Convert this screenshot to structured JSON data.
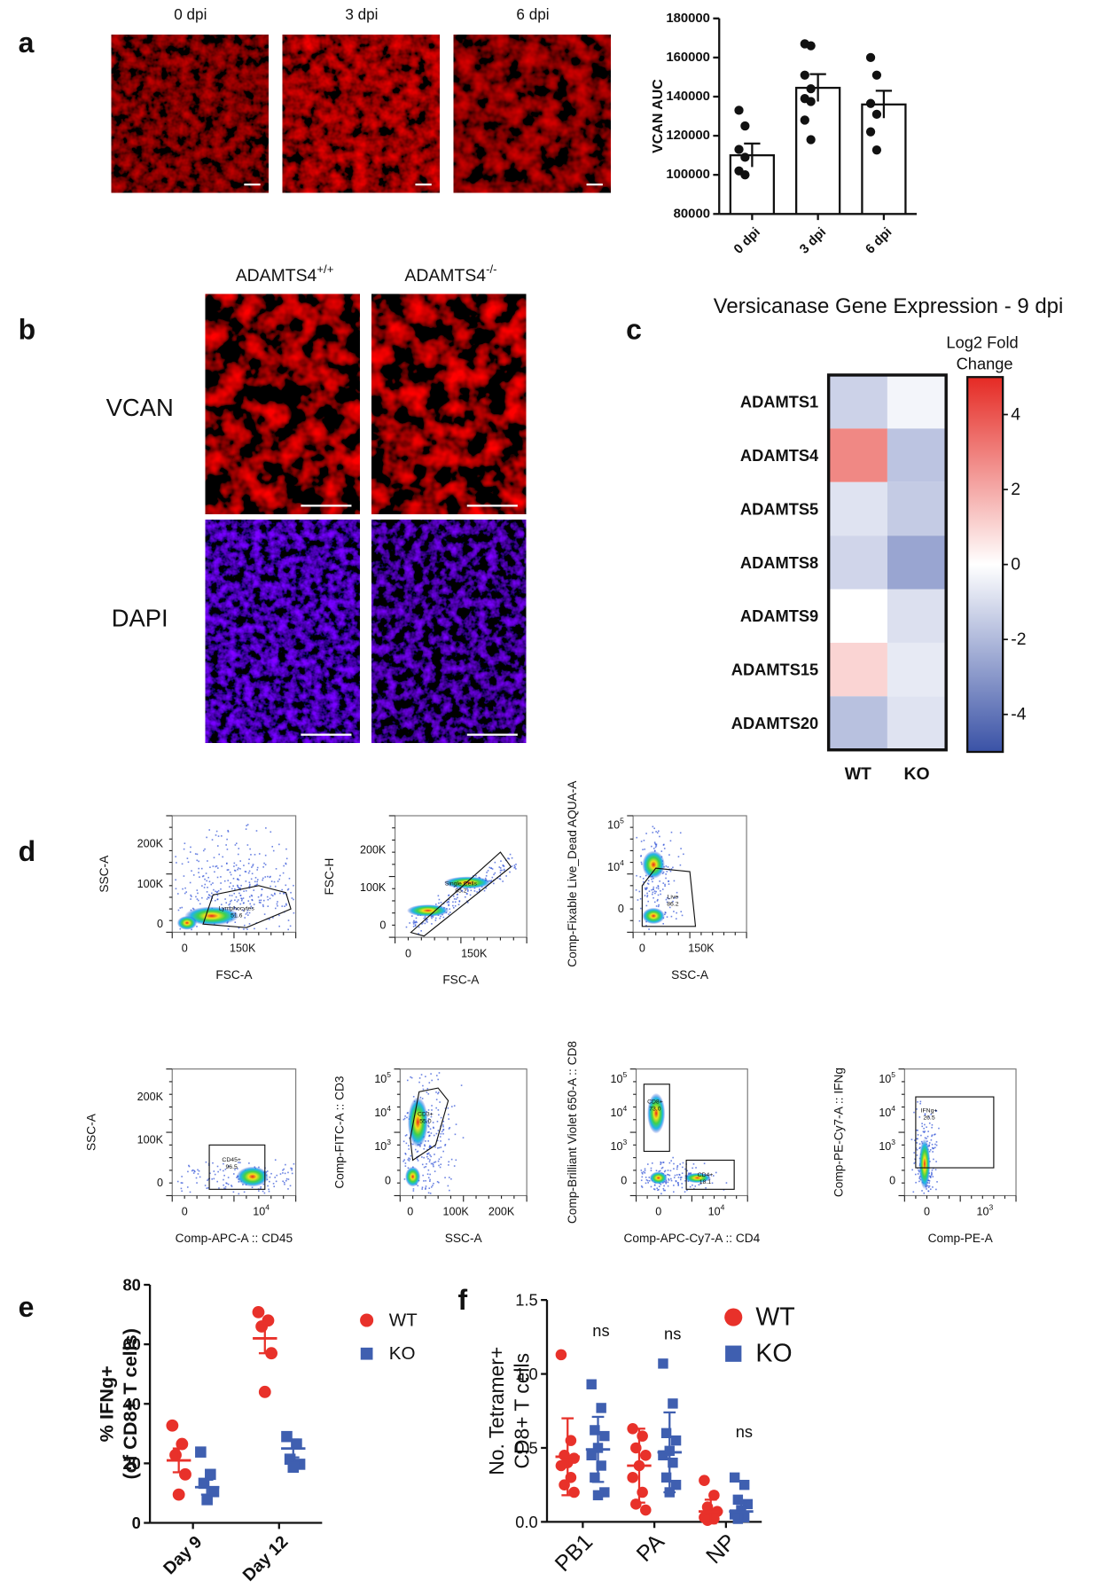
{
  "panel_labels": [
    "a",
    "b",
    "c",
    "d",
    "e",
    "f"
  ],
  "micrographs_a": {
    "labels": [
      "0 dpi",
      "3 dpi",
      "6 dpi"
    ]
  },
  "micrographs_b": {
    "columns": [
      {
        "base": "ADAMTS4",
        "exp": "+/+"
      },
      {
        "base": "ADAMTS4",
        "exp": "-/-"
      }
    ],
    "rows": [
      "VCAN",
      "DAPI"
    ]
  },
  "flow_plots": [
    {
      "xlabel": "FSC-A",
      "ylabel": "SSC-A",
      "xticks": [
        "0",
        "150K"
      ],
      "yticks": [
        "200K",
        "100K",
        "0"
      ],
      "gates": [
        {
          "name": "Lymphocytes",
          "value": "51.6"
        }
      ]
    },
    {
      "xlabel": "FSC-A",
      "ylabel": "FSC-H",
      "xticks": [
        "0",
        "150K"
      ],
      "yticks": [
        "200K",
        "100K",
        "0"
      ],
      "gates": [
        {
          "name": "Single Cells",
          "value": "85.2"
        }
      ]
    },
    {
      "xlabel": "SSC-A",
      "ylabel": "Comp-Fixable Live_Dead AQUA-A",
      "xticks": [
        "0",
        "150K"
      ],
      "yticks": [
        {
          "base": "10",
          "exp": "5"
        },
        {
          "base": "10",
          "exp": "4"
        },
        "0"
      ],
      "gates": [
        {
          "name": "Live",
          "value": "86.2"
        }
      ]
    },
    {
      "xlabel": "Comp-APC-A :: CD45",
      "ylabel": "SSC-A",
      "xticks": [
        "0",
        {
          "base": "10",
          "exp": "4"
        }
      ],
      "yticks": [
        "200K",
        "100K",
        "0"
      ],
      "gates": [
        {
          "name": "CD45+",
          "value": "96.5"
        }
      ]
    },
    {
      "xlabel": "SSC-A",
      "ylabel": "Comp-FITC-A :: CD3",
      "xticks": [
        "0",
        "100K",
        "200K"
      ],
      "yticks": [
        {
          "base": "10",
          "exp": "5"
        },
        {
          "base": "10",
          "exp": "4"
        },
        {
          "base": "10",
          "exp": "3"
        },
        "0"
      ],
      "gates": [
        {
          "name": "CD3+",
          "value": "55.0"
        }
      ]
    },
    {
      "xlabel": "Comp-APC-Cy7-A :: CD4",
      "ylabel": "Comp-Brilliant Violet 650-A :: CD8",
      "xticks": [
        "0",
        {
          "base": "10",
          "exp": "4"
        }
      ],
      "yticks": [
        {
          "base": "10",
          "exp": "5"
        },
        {
          "base": "10",
          "exp": "4"
        },
        {
          "base": "10",
          "exp": "3"
        },
        "0"
      ],
      "gates": [
        {
          "name": "CD8+",
          "value": "73.0"
        },
        {
          "name": "CD4+",
          "value": "18.1"
        }
      ]
    },
    {
      "xlabel": "Comp-PE-A",
      "ylabel": "Comp-PE-Cy7-A :: IFNg",
      "xticks": [
        "0",
        {
          "base": "10",
          "exp": "3"
        }
      ],
      "yticks": [
        {
          "base": "10",
          "exp": "5"
        },
        {
          "base": "10",
          "exp": "4"
        },
        {
          "base": "10",
          "exp": "3"
        },
        "0"
      ],
      "gates": [
        {
          "name": "IFNg+",
          "value": "26.5"
        }
      ]
    }
  ],
  "chart_data": [
    {
      "type": "bar",
      "ylabel": "VCAN AUC",
      "categories": [
        "0 dpi",
        "3 dpi",
        "6 dpi"
      ],
      "values": [
        110000,
        144500,
        136000
      ],
      "errors": [
        6000,
        7000,
        7000
      ],
      "points": [
        [
          133000,
          125000,
          113000,
          109000,
          102000,
          100000
        ],
        [
          167000,
          166000,
          151000,
          144000,
          139000,
          137500,
          128000,
          118000
        ],
        [
          160000,
          151000,
          136500,
          131000,
          122000,
          112700
        ]
      ],
      "color": "#ffffff",
      "point_color": "#111111",
      "ylim": [
        80000,
        180000
      ],
      "yticks": [
        80000,
        100000,
        120000,
        140000,
        160000,
        180000
      ]
    },
    {
      "type": "heatmap",
      "title": "Versicanase Gene Expression - 9 dpi",
      "rows": [
        "ADAMTS1",
        "ADAMTS4",
        "ADAMTS5",
        "ADAMTS8",
        "ADAMTS9",
        "ADAMTS15",
        "ADAMTS20"
      ],
      "columns": [
        "WT",
        "KO"
      ],
      "values": [
        [
          -1.3,
          -0.3
        ],
        [
          2.8,
          -1.7
        ],
        [
          -0.8,
          -1.5
        ],
        [
          -1.2,
          -2.6
        ],
        [
          0,
          -0.9
        ],
        [
          1,
          -0.6
        ],
        [
          -1.8,
          -0.8
        ]
      ],
      "colorbar_label": "Log2 Fold Change",
      "zlim": [
        -5,
        5
      ],
      "zticks": [
        4,
        2,
        0,
        -2,
        -4
      ],
      "colors": [
        "#3a52a6",
        "#ffffff",
        "#e52a24"
      ]
    },
    {
      "type": "dot",
      "ylabel": [
        "% IFNg+",
        "(of CD8+ T cells)"
      ],
      "categories": [
        "Day 9",
        "Day 12"
      ],
      "ylim": [
        0,
        80
      ],
      "yticks": [
        0,
        20,
        40,
        60,
        80
      ],
      "series": [
        {
          "name": "WT",
          "color": "#e8312a",
          "marker": "circle",
          "values": [
            21,
            62
          ],
          "errors": [
            4,
            5
          ],
          "points": [
            [
              32.7,
              26.5,
              22.8,
              16.3,
              9.5
            ],
            [
              70.8,
              68,
              66,
              57,
              44
            ]
          ]
        },
        {
          "name": "KO",
          "color": "#3f5fb0",
          "marker": "square",
          "values": [
            12,
            25
          ],
          "errors": [
            2.5,
            3
          ],
          "points": [
            [
              23.8,
              16.3,
              13.3,
              10.5,
              7.8
            ],
            [
              29,
              26.5,
              21.4,
              19.7,
              18.7
            ]
          ]
        }
      ]
    },
    {
      "type": "dot",
      "ylabel": [
        "No. Tetramer+",
        "CD8+ T cells"
      ],
      "categories": [
        "PB1",
        "PA",
        "NP"
      ],
      "ylim": [
        0,
        1.5
      ],
      "yticks": [
        {
          "value": 0,
          "label": "0.0"
        },
        0.5,
        {
          "value": 1,
          "label": "1.0"
        },
        1.5
      ],
      "annotations": [
        "ns",
        "ns",
        "ns"
      ],
      "series": [
        {
          "name": "WT",
          "color": "#e8312a",
          "marker": "circle",
          "values": [
            0.44,
            0.38,
            0.07
          ],
          "errors": [
            0.26,
            0.25,
            0.08
          ],
          "points": [
            [
              1.13,
              0.55,
              0.45,
              0.43,
              0.4,
              0.38,
              0.3,
              0.25,
              0.2
            ],
            [
              0.63,
              0.58,
              0.5,
              0.45,
              0.38,
              0.3,
              0.2,
              0.12,
              0.08
            ],
            [
              0.28,
              0.18,
              0.1,
              0.07,
              0.05,
              0.03,
              0.02,
              0.01
            ]
          ]
        },
        {
          "name": "KO",
          "color": "#3f5fb0",
          "marker": "square",
          "values": [
            0.49,
            0.47,
            0.07
          ],
          "errors": [
            0.22,
            0.27,
            0.06
          ],
          "points": [
            [
              0.93,
              0.77,
              0.62,
              0.58,
              0.5,
              0.45,
              0.38,
              0.3,
              0.2,
              0.18
            ],
            [
              1.07,
              0.8,
              0.6,
              0.55,
              0.48,
              0.45,
              0.4,
              0.3,
              0.25,
              0.2
            ],
            [
              0.3,
              0.25,
              0.15,
              0.12,
              0.08,
              0.05,
              0.03,
              0.02
            ]
          ]
        }
      ]
    }
  ]
}
